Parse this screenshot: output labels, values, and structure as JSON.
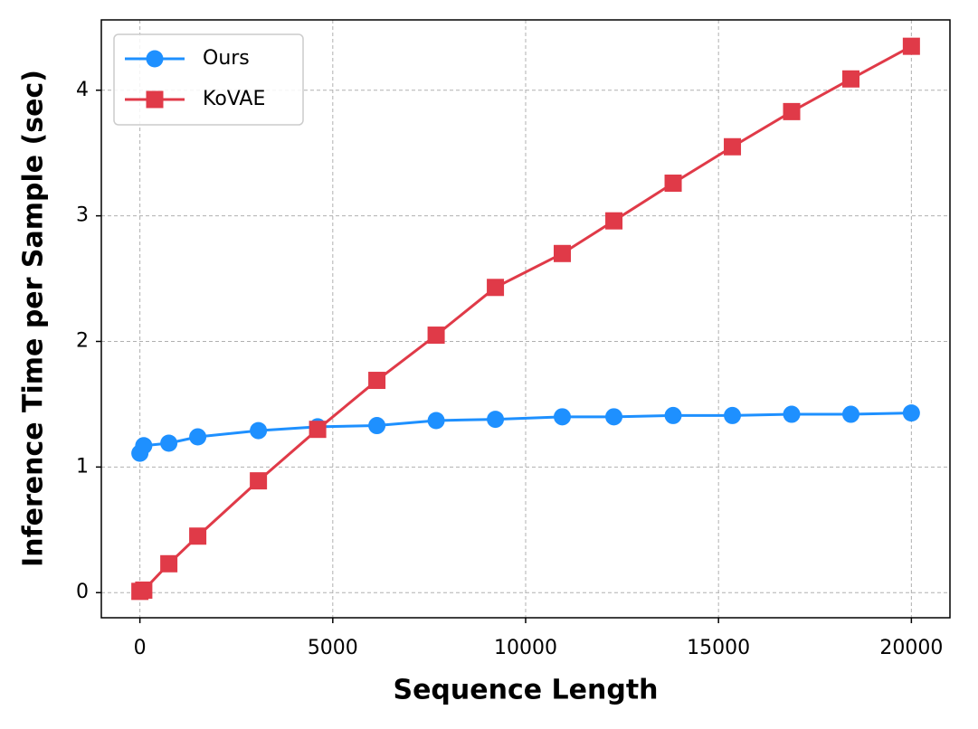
{
  "chart_data": {
    "type": "line",
    "x_label": "Sequence Length",
    "y_label": "Inference Time per Sample (sec)",
    "x": [
      0,
      100,
      750,
      1500,
      3072,
      4608,
      6144,
      7680,
      9216,
      10950,
      12288,
      13824,
      15360,
      16896,
      18432,
      20000
    ],
    "series": [
      {
        "name": "Ours",
        "color": "#1e90ff",
        "marker": "circle",
        "values": [
          1.11,
          1.17,
          1.19,
          1.24,
          1.29,
          1.32,
          1.33,
          1.37,
          1.38,
          1.4,
          1.4,
          1.41,
          1.41,
          1.42,
          1.42,
          1.43
        ]
      },
      {
        "name": "KoVAE",
        "color": "#e03a48",
        "marker": "square",
        "values": [
          0.01,
          0.02,
          0.23,
          0.45,
          0.89,
          1.3,
          1.69,
          2.05,
          2.43,
          2.7,
          2.96,
          3.26,
          3.55,
          3.83,
          4.09,
          4.35
        ]
      }
    ],
    "xlim": [
      -1000,
      21000
    ],
    "ylim": [
      -0.2,
      4.56
    ],
    "xticks": [
      0,
      5000,
      10000,
      15000,
      20000
    ],
    "yticks": [
      0,
      1,
      2,
      3,
      4
    ],
    "grid": true,
    "legend": "upper-left"
  }
}
